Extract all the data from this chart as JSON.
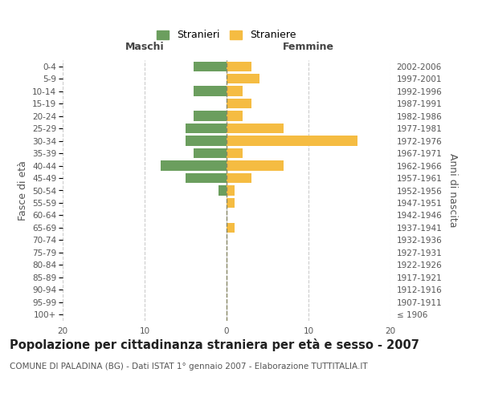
{
  "age_groups": [
    "100+",
    "95-99",
    "90-94",
    "85-89",
    "80-84",
    "75-79",
    "70-74",
    "65-69",
    "60-64",
    "55-59",
    "50-54",
    "45-49",
    "40-44",
    "35-39",
    "30-34",
    "25-29",
    "20-24",
    "15-19",
    "10-14",
    "5-9",
    "0-4"
  ],
  "birth_years": [
    "≤ 1906",
    "1907-1911",
    "1912-1916",
    "1917-1921",
    "1922-1926",
    "1927-1931",
    "1932-1936",
    "1937-1941",
    "1942-1946",
    "1947-1951",
    "1952-1956",
    "1957-1961",
    "1962-1966",
    "1967-1971",
    "1972-1976",
    "1977-1981",
    "1982-1986",
    "1987-1991",
    "1992-1996",
    "1997-2001",
    "2002-2006"
  ],
  "maschi": [
    0,
    0,
    0,
    0,
    0,
    0,
    0,
    0,
    0,
    0,
    1,
    5,
    8,
    4,
    5,
    5,
    4,
    0,
    4,
    0,
    4
  ],
  "femmine": [
    0,
    0,
    0,
    0,
    0,
    0,
    0,
    1,
    0,
    1,
    1,
    3,
    7,
    2,
    16,
    7,
    2,
    3,
    2,
    4,
    3
  ],
  "maschi_color": "#6b9e5e",
  "femmine_color": "#f5bc42",
  "title": "Popolazione per cittadinanza straniera per età e sesso - 2007",
  "subtitle": "COMUNE DI PALADINA (BG) - Dati ISTAT 1° gennaio 2007 - Elaborazione TUTTITALIA.IT",
  "xlabel_left": "Maschi",
  "xlabel_right": "Femmine",
  "ylabel_left": "Fasce di età",
  "ylabel_right": "Anni di nascita",
  "legend_stranieri": "Stranieri",
  "legend_straniere": "Straniere",
  "xlim": 20,
  "background_color": "#ffffff",
  "grid_color": "#cccccc",
  "bar_height": 0.8,
  "title_fontsize": 10.5,
  "subtitle_fontsize": 7.5,
  "tick_fontsize": 7.5,
  "label_fontsize": 9
}
